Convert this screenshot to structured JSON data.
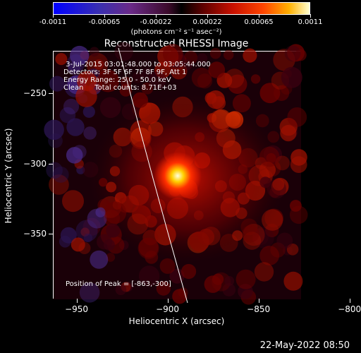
{
  "colorbar": {
    "ticks": [
      "-0.0011",
      "-0.00065",
      "-0.00022",
      "0.00022",
      "0.00065",
      "0.0011"
    ],
    "unit_text": "(photons cm⁻² s⁻¹ asec⁻²)"
  },
  "title": "Reconstructed RHESSI Image",
  "info": {
    "line1": " 3-Jul-2015 03:01:48.000 to 03:05:44.000",
    "line2": "Detectors: 3F 5F 6F 7F 8F 9F, Att 1",
    "line3": "Energy Range: 25.0 - 50.0 keV",
    "line4": "Clean     Total counts: 8.71E+03",
    "peak": "Position of Peak = [-863,-300]"
  },
  "axes": {
    "xlabel": "Heliocentric X (arcsec)",
    "ylabel": "Heliocentric Y (arcsec)",
    "xticks": [
      "−950",
      "−900",
      "−850",
      "−800"
    ],
    "yticks": [
      "−250",
      "−300",
      "−350"
    ],
    "xlim": [
      -963,
      -827
    ],
    "ylim": [
      -396,
      -220
    ],
    "xtick_values": [
      -950,
      -900,
      -850,
      -800
    ],
    "ytick_values": [
      -250,
      -300,
      -350
    ]
  },
  "peak_position": [
    -863,
    -300
  ],
  "timestamp": "22-May-2022 08:50"
}
